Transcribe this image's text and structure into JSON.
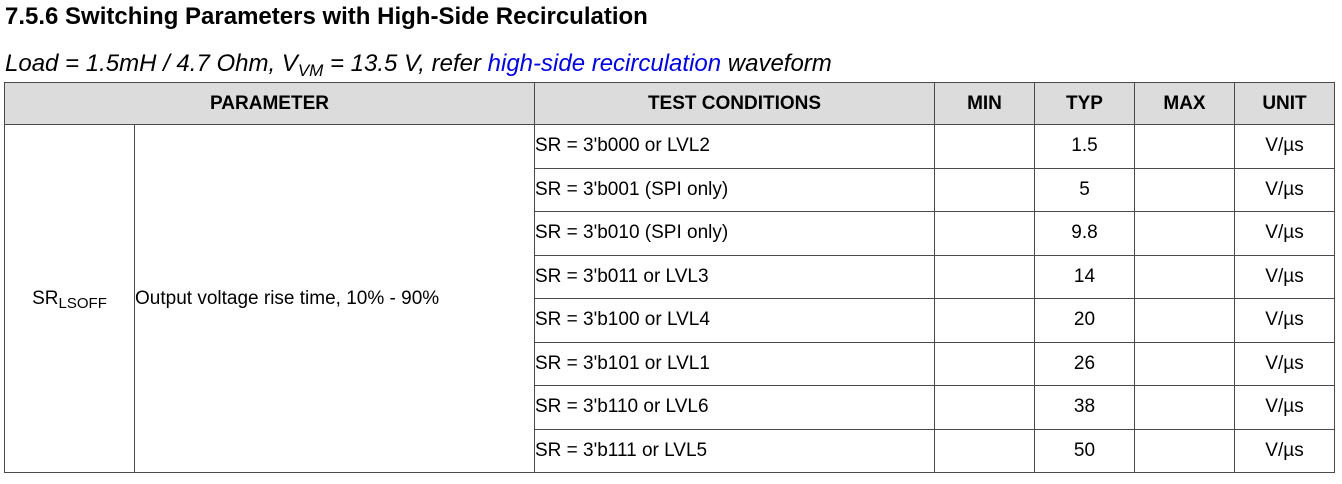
{
  "section_title": "7.5.6 Switching Parameters with High-Side Recirculation",
  "subtitle": {
    "prefix": "Load = 1.5mH / 4.7 Ohm, V",
    "sub": "VM",
    "middle": " = 13.5 V, refer ",
    "link_text": "high-side recirculation",
    "suffix": " waveform"
  },
  "table": {
    "headers": {
      "parameter": "PARAMETER",
      "test_conditions": "TEST CONDITIONS",
      "min": "MIN",
      "typ": "TYP",
      "max": "MAX",
      "unit": "UNIT"
    },
    "symbol_main": "SR",
    "symbol_sub": "LSOFF",
    "description": "Output voltage rise time, 10% - 90%",
    "rows": [
      {
        "condition": "SR = 3'b000 or LVL2",
        "min": "",
        "typ": "1.5",
        "max": "",
        "unit": "V/µs"
      },
      {
        "condition": "SR = 3'b001 (SPI only)",
        "min": "",
        "typ": "5",
        "max": "",
        "unit": "V/µs"
      },
      {
        "condition": "SR = 3'b010 (SPI only)",
        "min": "",
        "typ": "9.8",
        "max": "",
        "unit": "V/µs"
      },
      {
        "condition": "SR = 3'b011 or LVL3",
        "min": "",
        "typ": "14",
        "max": "",
        "unit": "V/µs"
      },
      {
        "condition": "SR = 3'b100 or LVL4",
        "min": "",
        "typ": "20",
        "max": "",
        "unit": "V/µs"
      },
      {
        "condition": "SR = 3'b101 or LVL1",
        "min": "",
        "typ": "26",
        "max": "",
        "unit": "V/µs"
      },
      {
        "condition": "SR = 3'b110 or LVL6",
        "min": "",
        "typ": "38",
        "max": "",
        "unit": "V/µs"
      },
      {
        "condition": "SR = 3'b111 or LVL5",
        "min": "",
        "typ": "50",
        "max": "",
        "unit": "V/µs"
      }
    ]
  },
  "colors": {
    "header_background": "#dcdcdc",
    "link": "#0000e0",
    "border": "#4a4a4a"
  }
}
